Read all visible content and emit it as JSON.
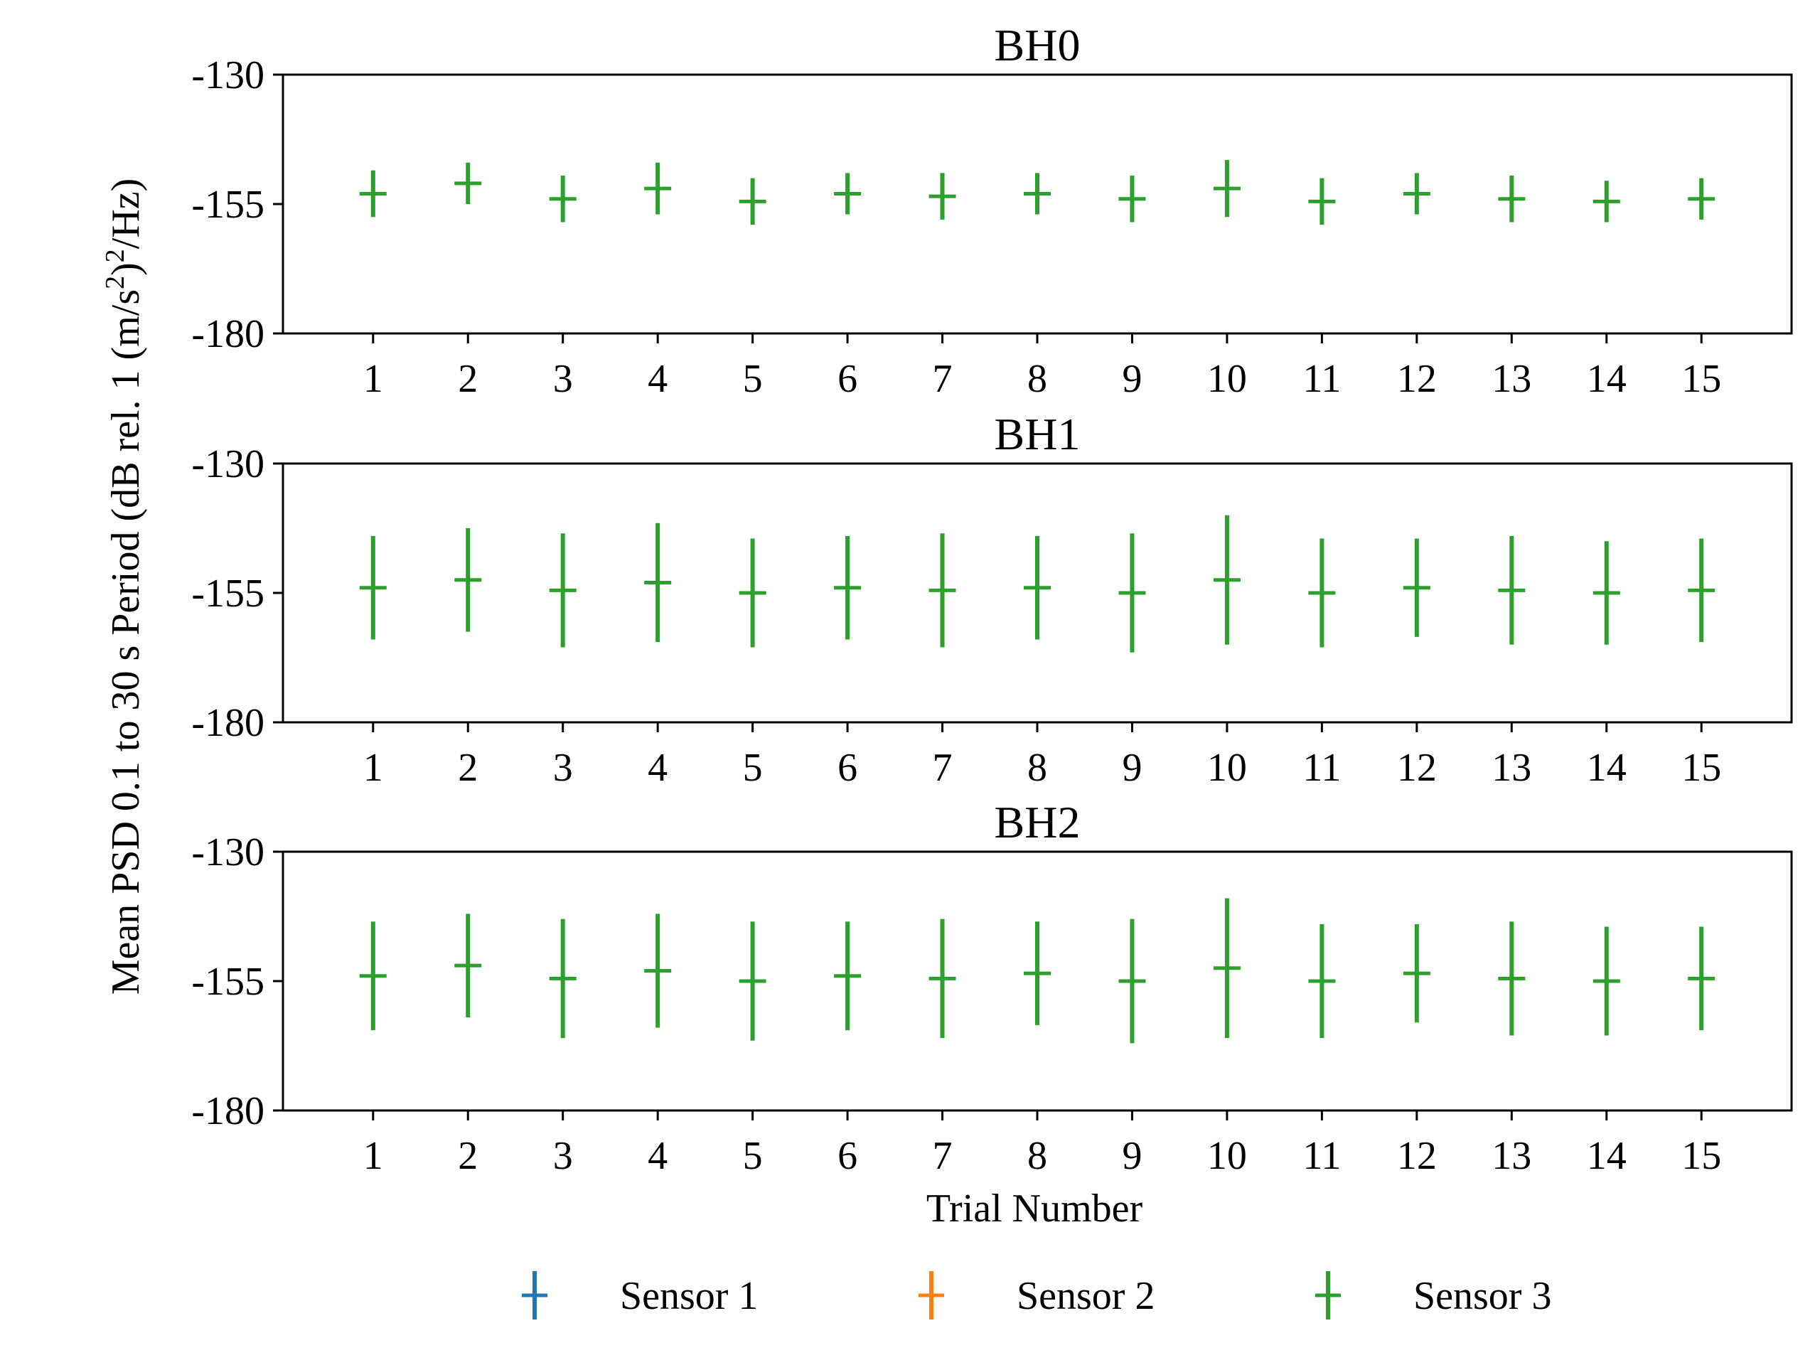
{
  "chart_data": {
    "type": "errorbar",
    "x": [
      1,
      2,
      3,
      4,
      5,
      6,
      7,
      8,
      9,
      10,
      11,
      12,
      13,
      14,
      15
    ],
    "xlabel": "Trial Number",
    "ylabel": "Mean PSD 0.1 to 30 s Period (dB rel. 1 (m/s²)²/Hz)",
    "ylim": [
      -180,
      -130
    ],
    "yticks": [
      -130,
      -155,
      -180
    ],
    "legend": {
      "placement": "bottom-center",
      "entries": [
        {
          "label": "Sensor 1",
          "color": "#1f77b4"
        },
        {
          "label": "Sensor 2",
          "color": "#ff7f0e"
        },
        {
          "label": "Sensor 3",
          "color": "#2ca02c"
        }
      ]
    },
    "panels": [
      {
        "title": "BH0",
        "series": [
          {
            "name": "Sensor 3",
            "color": "#2ca02c",
            "values": [
              -153.0,
              -151.0,
              -154.0,
              -152.0,
              -154.5,
              -153.0,
              -153.5,
              -153.0,
              -154.0,
              -152.0,
              -154.5,
              -153.0,
              -154.0,
              -154.5,
              -154.0
            ],
            "err": [
              4.5,
              4.0,
              4.5,
              5.0,
              4.5,
              4.0,
              4.5,
              4.0,
              4.5,
              5.5,
              4.5,
              4.0,
              4.5,
              4.0,
              4.0
            ]
          }
        ]
      },
      {
        "title": "BH1",
        "series": [
          {
            "name": "Sensor 3",
            "color": "#2ca02c",
            "values": [
              -154.0,
              -152.5,
              -154.5,
              -153.0,
              -155.0,
              -154.0,
              -154.5,
              -154.0,
              -155.0,
              -152.5,
              -155.0,
              -154.0,
              -154.5,
              -155.0,
              -154.5
            ],
            "err": [
              10.0,
              10.0,
              11.0,
              11.5,
              10.5,
              10.0,
              11.0,
              10.0,
              11.5,
              12.5,
              10.5,
              9.5,
              10.5,
              10.0,
              10.0
            ]
          }
        ]
      },
      {
        "title": "BH2",
        "series": [
          {
            "name": "Sensor 3",
            "color": "#2ca02c",
            "values": [
              -154.0,
              -152.0,
              -154.5,
              -153.0,
              -155.0,
              -154.0,
              -154.5,
              -153.5,
              -155.0,
              -152.5,
              -155.0,
              -153.5,
              -154.5,
              -155.0,
              -154.5
            ],
            "err": [
              10.5,
              10.0,
              11.5,
              11.0,
              11.5,
              10.5,
              11.5,
              10.0,
              12.0,
              13.5,
              11.0,
              9.5,
              11.0,
              10.5,
              10.0
            ]
          }
        ]
      }
    ]
  }
}
